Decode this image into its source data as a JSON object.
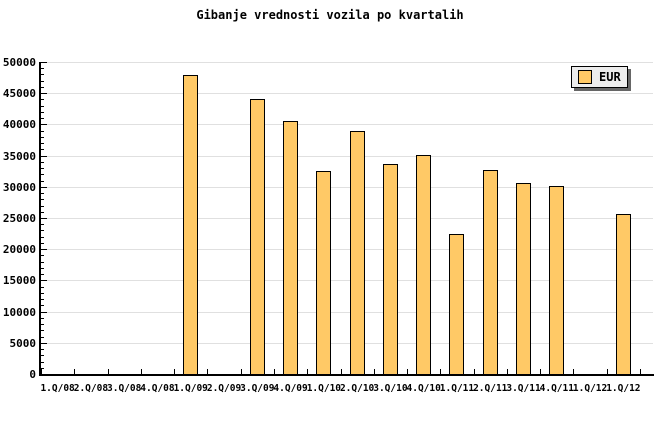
{
  "title": "Gibanje vrednosti vozila po kvartalih",
  "legend": {
    "label": "EUR",
    "swatch_color": "#ffc966"
  },
  "colors": {
    "bar_fill": "#ffc966",
    "bar_border": "#000000",
    "gridline": "#e0e0e0",
    "axis": "#000000",
    "legend_bg": "#ececec",
    "legend_shadow": "#666666",
    "text": "#000000",
    "background": "#ffffff"
  },
  "chart_data": {
    "type": "bar",
    "title": "Gibanje vrednosti vozila po kvartalih",
    "categories": [
      "1.Q/08",
      "2.Q/08",
      "3.Q/08",
      "4.Q/08",
      "1.Q/09",
      "2.Q/09",
      "3.Q/09",
      "4.Q/09",
      "1.Q/10",
      "2.Q/10",
      "3.Q/10",
      "4.Q/10",
      "1.Q/11",
      "2.Q/11",
      "3.Q/11",
      "4.Q/11",
      "1.Q/12",
      "1.Q/12"
    ],
    "series": [
      {
        "name": "EUR",
        "values": [
          null,
          null,
          null,
          null,
          47900,
          null,
          44000,
          40500,
          32500,
          38900,
          33600,
          35100,
          22400,
          32700,
          30600,
          30200,
          null,
          25700
        ]
      }
    ],
    "xlabel": "",
    "ylabel": "",
    "ylim": [
      0,
      50000
    ],
    "y_major_step": 5000,
    "y_minor_step": 1000,
    "grid": "horizontal-only",
    "legend_position": "top-right"
  }
}
